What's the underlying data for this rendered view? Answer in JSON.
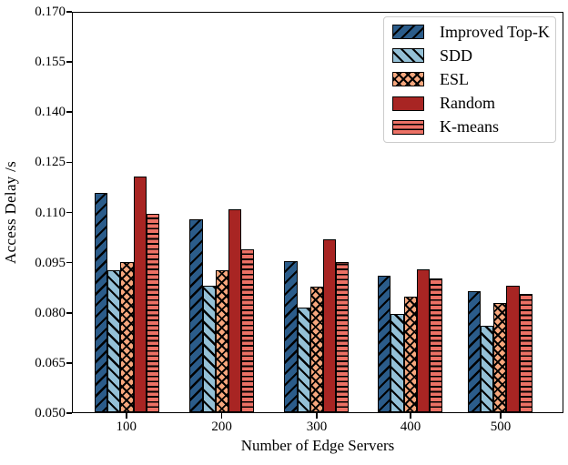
{
  "chart_data": {
    "type": "bar",
    "title": "",
    "xlabel": "Number of Edge Servers",
    "ylabel": "Access Delay /s",
    "categories": [
      "100",
      "200",
      "300",
      "400",
      "500"
    ],
    "series": [
      {
        "name": "Improved Top-K",
        "color": "#2b5c8a",
        "hatch": "/",
        "values": [
          0.1159,
          0.108,
          0.0954,
          0.0909,
          0.0863
        ]
      },
      {
        "name": "SDD",
        "color": "#94c0d6",
        "hatch": "\\",
        "values": [
          0.0926,
          0.088,
          0.0814,
          0.0795,
          0.0759
        ]
      },
      {
        "name": "ESL",
        "color": "#f7a77d",
        "hatch": "x",
        "values": [
          0.0952,
          0.0926,
          0.0876,
          0.0848,
          0.0827
        ]
      },
      {
        "name": "Random",
        "color": "#a82523",
        "hatch": "",
        "values": [
          0.1209,
          0.111,
          0.102,
          0.0929,
          0.0881
        ]
      },
      {
        "name": "K-means",
        "color": "#ec7165",
        "hatch": "-",
        "values": [
          0.1096,
          0.0988,
          0.095,
          0.0902,
          0.0856
        ]
      }
    ],
    "ylim": [
      0.05,
      0.17
    ],
    "yticks": [
      "0.050",
      "0.065",
      "0.080",
      "0.095",
      "0.110",
      "0.125",
      "0.140",
      "0.155",
      "0.170"
    ],
    "grid": false,
    "legend_position": "upper right",
    "edge_color": "#000000"
  }
}
